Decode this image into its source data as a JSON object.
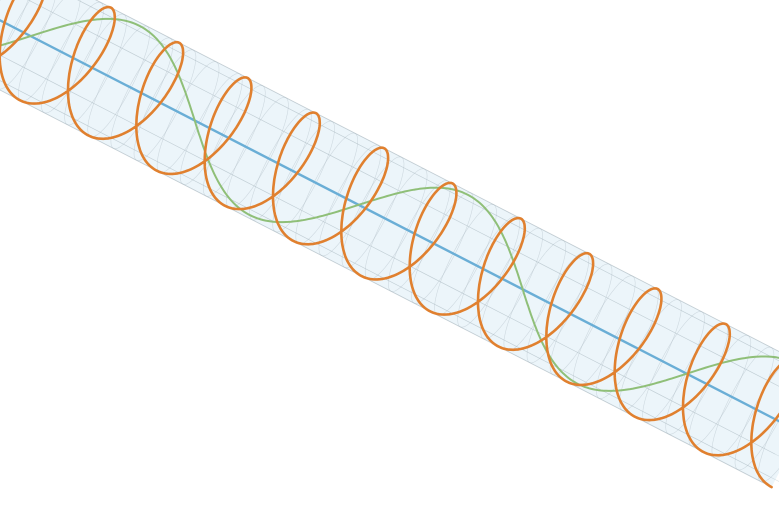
{
  "scene": {
    "kind": "3d-helix-on-cylinder",
    "colors": {
      "background": "#ffffff",
      "cylinder_fill": "#dcedf6",
      "cylinder_grid": "#aab8c0",
      "axis": "#6aaed6",
      "helix": "#e0802f",
      "wave": "#8fbf78"
    },
    "helix_turns_visible": 12,
    "wave_periods_visible": 2.5,
    "grid": true
  }
}
